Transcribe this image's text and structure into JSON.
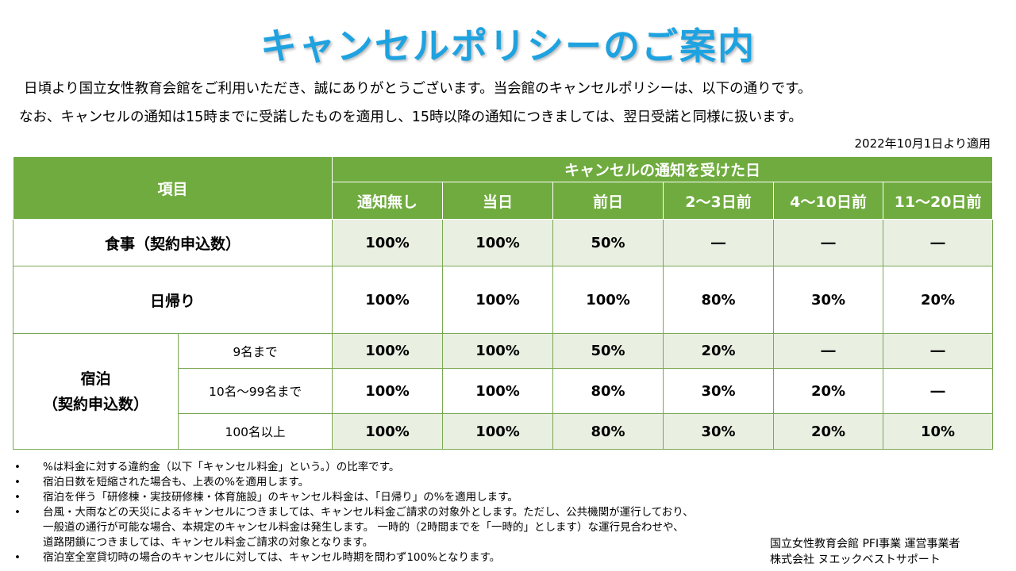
{
  "title": "キャンセルポリシーのご案内",
  "intro": {
    "line1": "日頃より国立女性教育会館をご利用いただき、誠にありがとうございます。当会館のキャンセルポリシーは、以下の通りです。",
    "line2": "なお、キャンセルの通知は15時までに受諾したものを適用し、15時以降の通知につきましては、翌日受諾と同様に扱います。"
  },
  "effective": "2022年10月1日より適用",
  "table": {
    "item_header": "項目",
    "group_header": "キャンセルの通知を受けた日",
    "columns": [
      "通知無し",
      "当日",
      "前日",
      "2～3日前",
      "4～10日前",
      "11～20日前"
    ],
    "meal": {
      "label": "食事（契約申込数）",
      "values": [
        "100%",
        "100%",
        "50%",
        "―",
        "―",
        "―"
      ]
    },
    "day_trip": {
      "label": "日帰り",
      "values": [
        "100%",
        "100%",
        "100%",
        "80%",
        "30%",
        "20%"
      ]
    },
    "stay": {
      "label_line1": "宿泊",
      "label_line2": "（契約申込数）",
      "rows": [
        {
          "sub": "9名まで",
          "values": [
            "100%",
            "100%",
            "50%",
            "20%",
            "―",
            "―"
          ]
        },
        {
          "sub": "10名～99名まで",
          "values": [
            "100%",
            "100%",
            "80%",
            "30%",
            "20%",
            "―"
          ]
        },
        {
          "sub": "100名以上",
          "values": [
            "100%",
            "100%",
            "80%",
            "30%",
            "20%",
            "10%"
          ]
        }
      ]
    }
  },
  "notes": [
    {
      "bullet": "•",
      "text": "%は料金に対する違約金（以下「キャンセル料金」という。）の比率です。"
    },
    {
      "bullet": "•",
      "text": "宿泊日数を短縮された場合も、上表の%を適用します。"
    },
    {
      "bullet": "•",
      "text": "宿泊を伴う「研修棟・実技研修棟・体育施設」のキャンセル料金は、「日帰り」の%を適用します。"
    },
    {
      "bullet": "•",
      "text": "台風・大雨などの天災によるキャンセルにつきましては、キャンセル料金ご請求の対象外とします。ただし、公共機関が運行しており、",
      "text2": "一般道の通行が可能な場合、本規定のキャンセル料金は発生します。 一時的（2時間までを「一時的」とします）な運行見合わせや、",
      "text3": "道路閉鎖につきましては、キャンセル料金ご請求の対象となります。"
    },
    {
      "bullet": "•",
      "text": "宿泊室全室貸切時の場合のキャンセルに対しては、キャンセル時期を問わず100%となります。"
    }
  ],
  "footer": {
    "line1": "国立女性教育会館 PFI事業 運営事業者",
    "line2": "株式会社 ヌエックベストサポート"
  },
  "colors": {
    "title": "#1ea2e0",
    "header_bg": "#6fab3e",
    "row_shade": "#e9f0e2",
    "border": "#7aa853"
  }
}
